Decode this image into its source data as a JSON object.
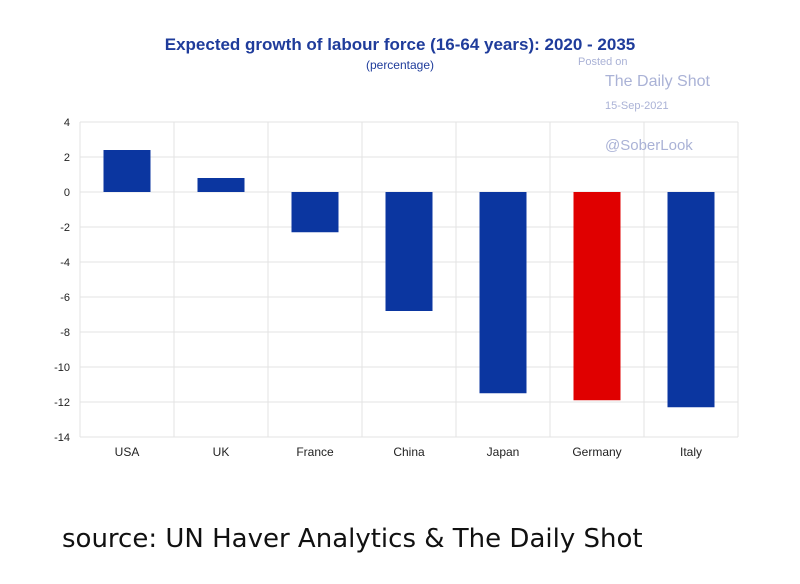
{
  "chart_data": {
    "type": "bar",
    "title": "Expected growth of labour force (16-64 years): 2020 - 2035",
    "subtitle": "(percentage)",
    "categories": [
      "USA",
      "UK",
      "France",
      "China",
      "Japan",
      "Germany",
      "Italy"
    ],
    "values": [
      2.4,
      0.8,
      -2.3,
      -6.8,
      -11.5,
      -11.9,
      -12.3
    ],
    "bar_colors": [
      "#0b36a0",
      "#0b36a0",
      "#0b36a0",
      "#0b36a0",
      "#0b36a0",
      "#e00000",
      "#0b36a0"
    ],
    "ylim": [
      -14,
      4
    ],
    "yticks": [
      4,
      2,
      0,
      -2,
      -4,
      -6,
      -8,
      -10,
      -12,
      -14
    ],
    "xlabel": "",
    "ylabel": "",
    "grid": true,
    "legend": "none"
  },
  "watermark": {
    "posted": "Posted on",
    "brand": "The Daily Shot",
    "date": "15-Sep-2021",
    "handle": "@SoberLook"
  },
  "source": "source: UN Haver Analytics & The Daily Shot",
  "colors": {
    "title": "#1f3c9b",
    "bar_default": "#0b36a0",
    "bar_highlight": "#e00000",
    "grid": "#e3e3e3",
    "watermark": "#aab2d6"
  }
}
